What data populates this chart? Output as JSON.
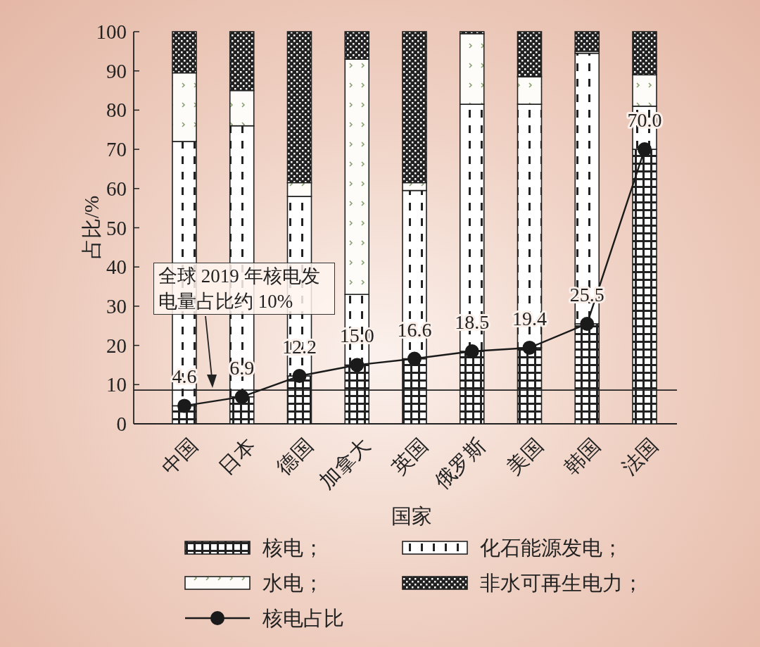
{
  "chart_data": {
    "type": "bar",
    "stacked": true,
    "xlabel": "国家",
    "ylabel": "占比/%",
    "categories": [
      "中国",
      "日本",
      "德国",
      "加拿大",
      "英国",
      "俄罗斯",
      "美国",
      "韩国",
      "法国"
    ],
    "ylim": [
      0,
      100
    ],
    "yticks": [
      0,
      10,
      20,
      30,
      40,
      50,
      60,
      70,
      80,
      90,
      100
    ],
    "grid": false,
    "legend": "bottom",
    "series": [
      {
        "name": "核电；",
        "color": "#222222",
        "values": [
          4.6,
          6.9,
          12.2,
          15.0,
          16.6,
          18.5,
          19.4,
          25.5,
          70.0
        ]
      },
      {
        "name": "化石能源发电；",
        "color": "#222222",
        "values": [
          67.4,
          69.1,
          45.8,
          18,
          42.9,
          63,
          62.1,
          69,
          11
        ]
      },
      {
        "name": "水电；",
        "color": "#222222",
        "values": [
          17.5,
          9,
          3.5,
          60,
          2,
          18,
          7,
          0.5,
          8
        ]
      },
      {
        "name": "非水可再生电力；",
        "color": "#222222",
        "values": [
          10.5,
          15,
          38.5,
          7,
          38.5,
          0.5,
          11.5,
          5,
          11
        ]
      },
      {
        "name": "核电占比",
        "type": "line",
        "color": "#1a1a1a",
        "marker": "circle",
        "line_style": "solid",
        "values": [
          4.6,
          6.9,
          12.2,
          15.0,
          16.6,
          18.5,
          19.4,
          25.5,
          70.0
        ],
        "value_labels": [
          "4.6",
          "6.9",
          "12.2",
          "15.0",
          "16.6",
          "18.5",
          "19.4",
          "25.5",
          "70.0"
        ]
      }
    ],
    "ref_lines": [
      {
        "axis": "y",
        "value": 8.6
      }
    ],
    "annotations": [
      "全球 2019 年核电发电量占比约 10%"
    ]
  }
}
